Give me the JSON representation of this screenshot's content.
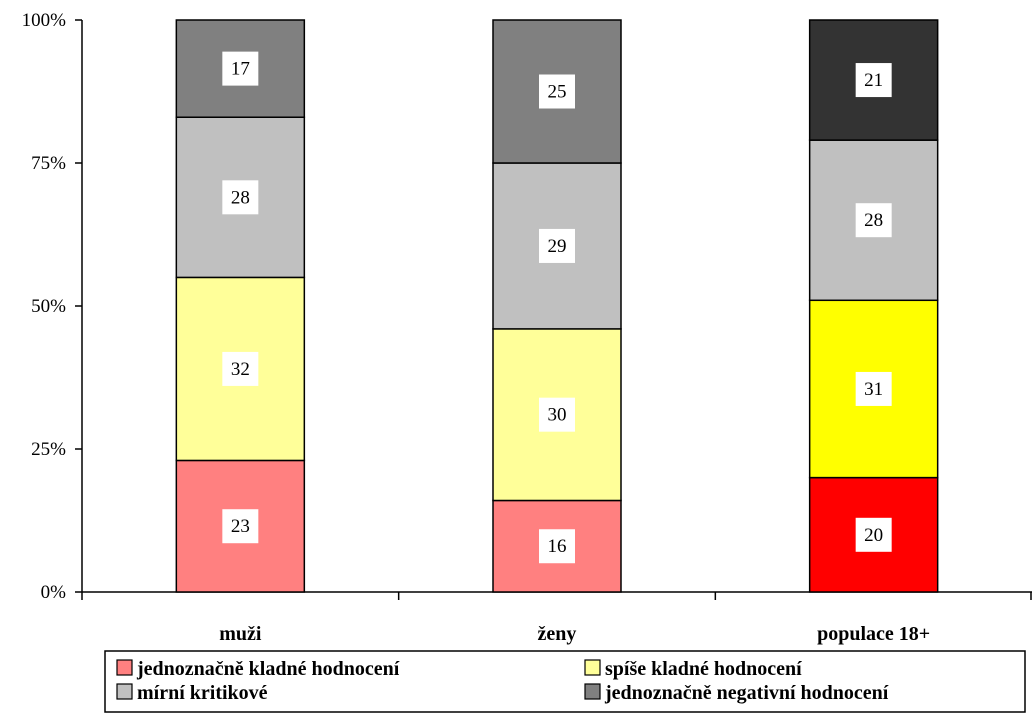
{
  "chart_data": {
    "type": "stacked-bar-100",
    "categories": [
      "muži",
      "ženy",
      "populace 18+"
    ],
    "series": [
      {
        "name": "jednoznačně kladné hodnocení",
        "values": [
          23,
          16,
          20
        ]
      },
      {
        "name": "spíše kladné hodnocení",
        "values": [
          32,
          30,
          31
        ]
      },
      {
        "name": "mírní kritikové",
        "values": [
          28,
          29,
          28
        ]
      },
      {
        "name": "jednoznačně negativní hodnocení",
        "values": [
          17,
          25,
          21
        ]
      }
    ],
    "bar_colors": [
      [
        "#ff8080",
        "#ffff99",
        "#c0c0c0",
        "#808080"
      ],
      [
        "#ff8080",
        "#ffff99",
        "#c0c0c0",
        "#808080"
      ],
      [
        "#ff0000",
        "#ffff00",
        "#c0c0c0",
        "#333333"
      ]
    ],
    "legend_colors": [
      "#ff8080",
      "#ffff99",
      "#c0c0c0",
      "#808080"
    ],
    "y_ticks": [
      "0%",
      "25%",
      "50%",
      "75%",
      "100%"
    ],
    "ylim": [
      0,
      100
    ],
    "legend_position": "bottom",
    "grid": false
  }
}
